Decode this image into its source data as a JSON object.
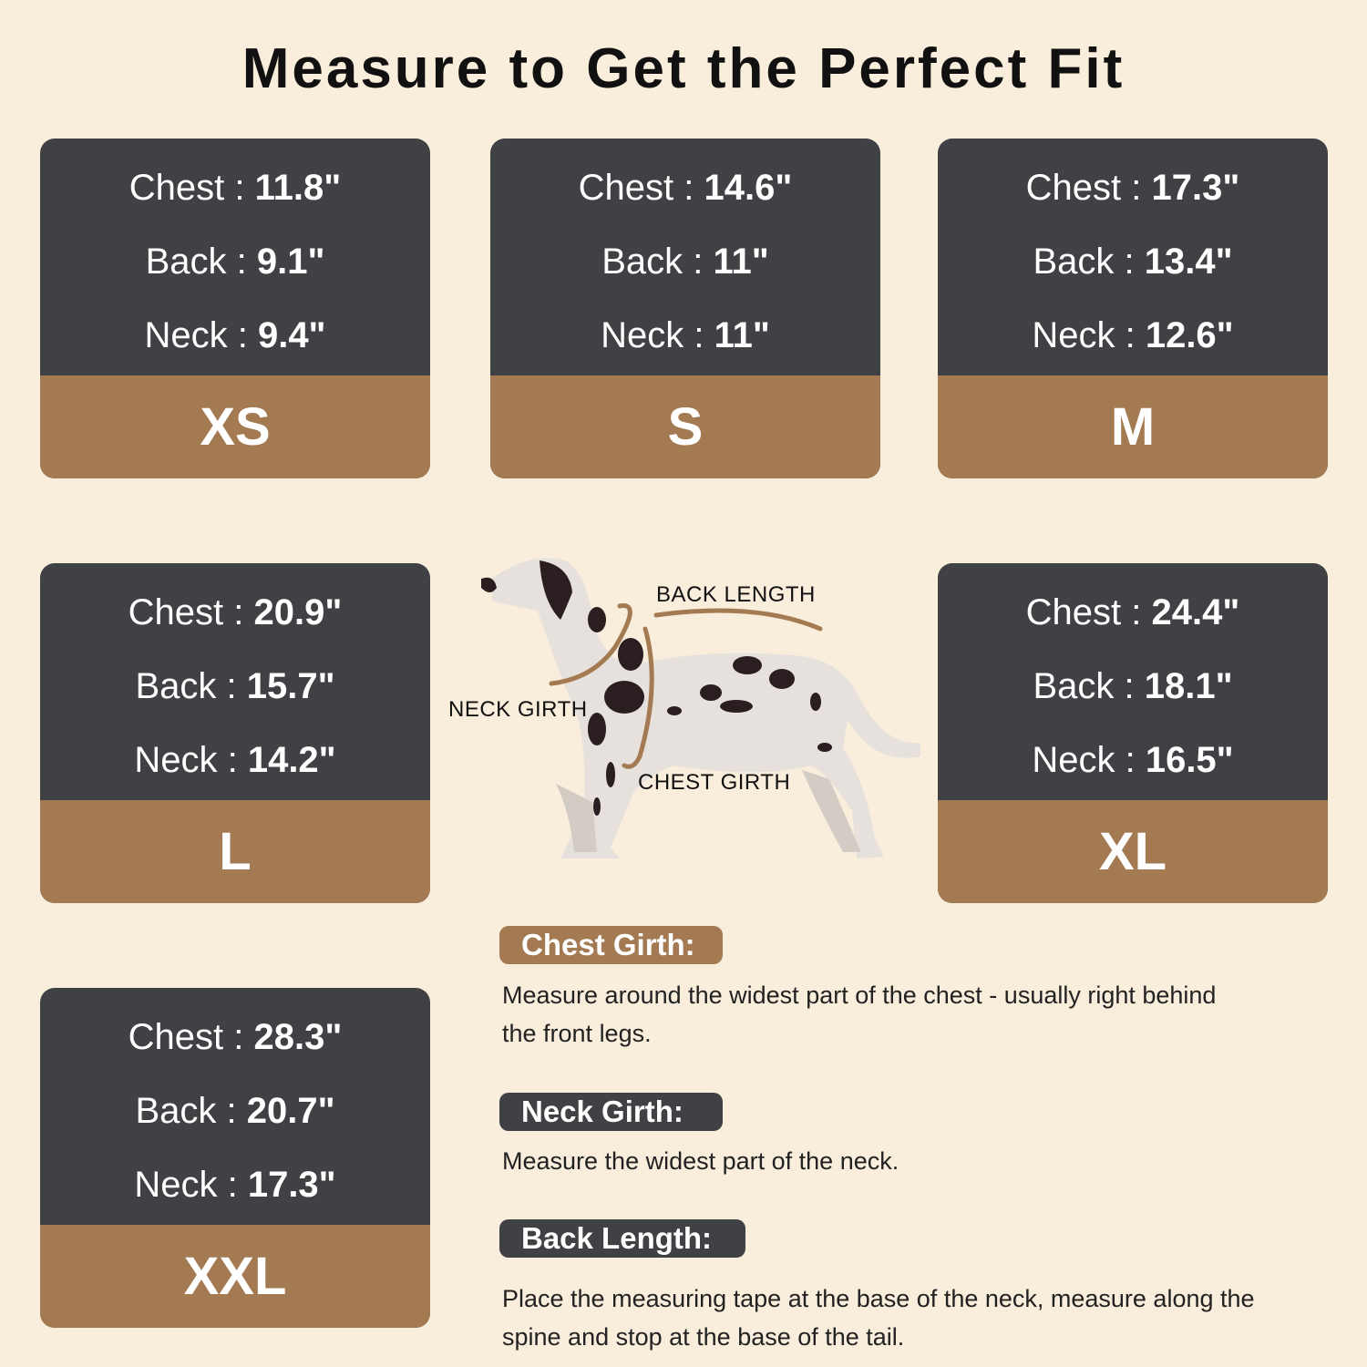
{
  "title": "Measure to Get the Perfect Fit",
  "colors": {
    "background": "#f9eddb",
    "card_dark": "#404145",
    "accent_brown": "#a37a52"
  },
  "sizes": [
    {
      "size": "XS",
      "chest": "Chest : ",
      "chest_val": "11.8\"",
      "back": "Back : ",
      "back_val": "9.1\"",
      "neck": "Neck : ",
      "neck_val": "9.4\""
    },
    {
      "size": "S",
      "chest": "Chest : ",
      "chest_val": "14.6\"",
      "back": "Back : ",
      "back_val": "11\"",
      "neck": "Neck : ",
      "neck_val": "11\""
    },
    {
      "size": "M",
      "chest": "Chest : ",
      "chest_val": "17.3\"",
      "back": "Back : ",
      "back_val": "13.4\"",
      "neck": "Neck : ",
      "neck_val": "12.6\""
    },
    {
      "size": "L",
      "chest": "Chest : ",
      "chest_val": "20.9\"",
      "back": "Back : ",
      "back_val": "15.7\"",
      "neck": "Neck : ",
      "neck_val": "14.2\""
    },
    {
      "size": "XL",
      "chest": "Chest : ",
      "chest_val": "24.4\"",
      "back": "Back : ",
      "back_val": "18.1\"",
      "neck": "Neck : ",
      "neck_val": "16.5\""
    },
    {
      "size": "XXL",
      "chest": "Chest : ",
      "chest_val": "28.3\"",
      "back": "Back : ",
      "back_val": "20.7\"",
      "neck": "Neck : ",
      "neck_val": "17.3\""
    }
  ],
  "diagram": {
    "back_length": "BACK LENGTH",
    "neck_girth": "NECK GIRTH",
    "chest_girth": "CHEST GIRTH"
  },
  "instructions": [
    {
      "label": "Chest Girth:",
      "line1": "Measure around the widest part of the chest - usually right behind",
      "line2": "the front legs."
    },
    {
      "label": "Neck Girth:",
      "line1": "Measure the widest part of the neck.",
      "line2": ""
    },
    {
      "label": "Back Length:",
      "line1": "Place the measuring tape at the base of the neck, measure along the",
      "line2": "spine and stop at the base of the tail."
    }
  ]
}
